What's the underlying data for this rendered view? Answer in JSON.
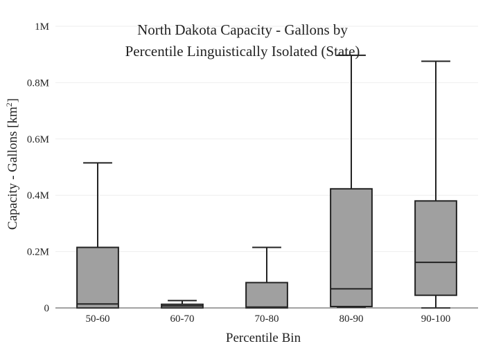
{
  "chart_data": {
    "type": "box",
    "title_lines": [
      "North Dakota Capacity - Gallons by",
      "Percentile Linguistically Isolated (State)"
    ],
    "xlabel": "Percentile Bin",
    "ylabel_text": "Capacity - Gallons  [km",
    "ylabel_sup": "2",
    "ylabel_end": "]",
    "ylim": [
      0,
      1000000
    ],
    "yticks": [
      0,
      200000,
      400000,
      600000,
      800000,
      1000000
    ],
    "ytick_labels": [
      "0",
      "0.2M",
      "0.4M",
      "0.6M",
      "0.8M",
      "1M"
    ],
    "grid": true,
    "box_color": "#a0a0a0",
    "line_color": "#222222",
    "categories": [
      "50-60",
      "60-70",
      "70-80",
      "80-90",
      "90-100"
    ],
    "boxes": [
      {
        "category": "50-60",
        "min": 0,
        "q1": 0,
        "median": 14000,
        "q3": 215000,
        "max": 515000
      },
      {
        "category": "60-70",
        "min": 0,
        "q1": 0,
        "median": 7000,
        "q3": 13000,
        "max": 26000
      },
      {
        "category": "70-80",
        "min": 0,
        "q1": 0,
        "median": 3000,
        "q3": 90000,
        "max": 215000
      },
      {
        "category": "80-90",
        "min": 3000,
        "q1": 5000,
        "median": 68000,
        "q3": 423000,
        "max": 897000
      },
      {
        "category": "90-100",
        "min": 0,
        "q1": 45000,
        "median": 162000,
        "q3": 380000,
        "max": 876000
      }
    ]
  }
}
